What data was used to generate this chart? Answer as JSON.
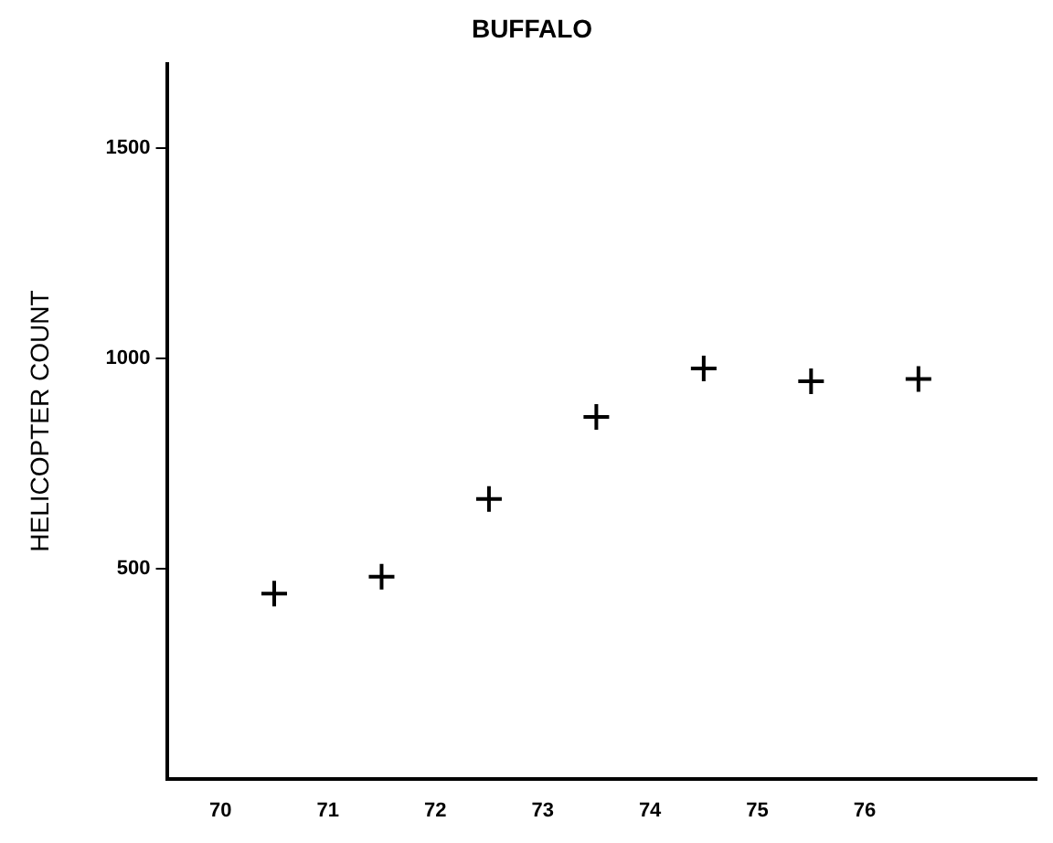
{
  "chart_data": {
    "type": "scatter",
    "title": "BUFFALO",
    "ylabel": "HELICOPTER COUNT",
    "x": [
      70.5,
      71.5,
      72.5,
      73.5,
      74.5,
      75.5,
      76.5
    ],
    "series": [
      {
        "color": "#000000",
        "values": [
          440,
          480,
          665,
          860,
          975,
          945,
          950
        ]
      }
    ],
    "xlim": [
      69.5,
      77.6
    ],
    "xticks": [
      70,
      71,
      72,
      73,
      74,
      75,
      76
    ],
    "ylim": [
      0,
      1700
    ],
    "yticks": [
      500,
      1000,
      1500
    ],
    "grid": false,
    "legend": false,
    "marker": "cross"
  }
}
